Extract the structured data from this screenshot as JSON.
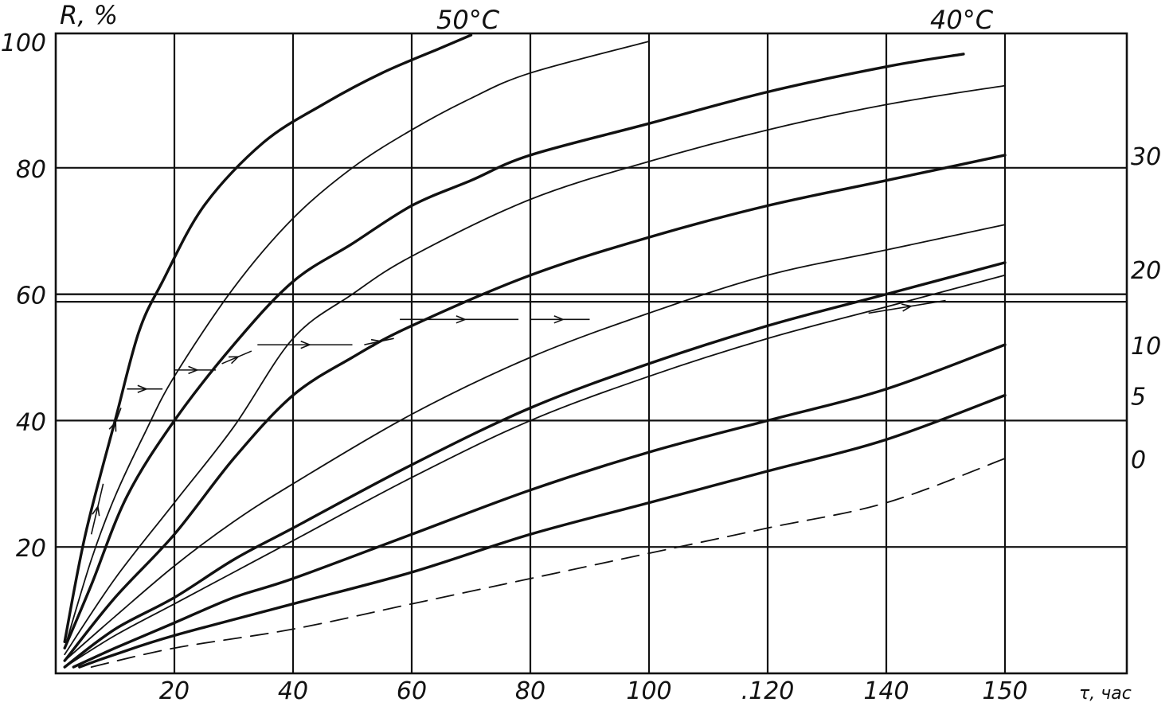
{
  "chart_data": {
    "type": "line",
    "title": "",
    "header_labels": {
      "left": "50°C",
      "right": "40°C"
    },
    "ylabel": "R, %",
    "xlabel": "τ, час",
    "xlim": [
      0,
      150
    ],
    "ylim": [
      0,
      100
    ],
    "grid": true,
    "x_tick_labels": [
      "20",
      "40",
      "60",
      "80",
      "100",
      ".120",
      "140",
      "150",
      "τ, час"
    ],
    "y_tick_labels": [
      "100",
      "80",
      "60",
      "40",
      "20"
    ],
    "right_labels": [
      "30",
      "20",
      "10",
      "5",
      "0"
    ],
    "series": [
      {
        "label": "",
        "heavy": true,
        "points": [
          [
            1.5,
            5
          ],
          [
            5,
            22
          ],
          [
            10,
            40
          ],
          [
            14,
            54
          ],
          [
            18,
            62
          ],
          [
            25,
            74
          ],
          [
            35,
            84
          ],
          [
            45,
            90
          ],
          [
            55,
            95
          ],
          [
            65,
            99
          ],
          [
            70,
            101
          ]
        ]
      },
      {
        "label": "",
        "heavy": false,
        "points": [
          [
            1.5,
            4
          ],
          [
            6,
            18
          ],
          [
            10,
            28
          ],
          [
            15,
            38
          ],
          [
            20,
            47
          ],
          [
            30,
            61
          ],
          [
            40,
            72
          ],
          [
            50,
            80
          ],
          [
            60,
            86
          ],
          [
            70,
            91
          ],
          [
            80,
            95
          ],
          [
            100,
            100
          ]
        ]
      },
      {
        "label": "",
        "heavy": true,
        "points": [
          [
            1.5,
            4
          ],
          [
            6,
            14
          ],
          [
            12,
            28
          ],
          [
            20,
            40
          ],
          [
            30,
            52
          ],
          [
            40,
            62
          ],
          [
            50,
            68
          ],
          [
            60,
            74
          ],
          [
            70,
            78
          ],
          [
            80,
            82
          ],
          [
            100,
            87
          ],
          [
            120,
            92
          ],
          [
            140,
            96
          ],
          [
            153,
            98
          ]
        ]
      },
      {
        "label": "",
        "heavy": false,
        "points": [
          [
            1.5,
            3
          ],
          [
            10,
            15
          ],
          [
            20,
            27
          ],
          [
            30,
            39
          ],
          [
            40,
            53
          ],
          [
            50,
            60
          ],
          [
            60,
            66
          ],
          [
            80,
            75
          ],
          [
            100,
            81
          ],
          [
            120,
            86
          ],
          [
            140,
            90
          ],
          [
            160,
            93
          ]
        ]
      },
      {
        "label": "30",
        "heavy": true,
        "points": [
          [
            1.5,
            2
          ],
          [
            10,
            12
          ],
          [
            20,
            22
          ],
          [
            30,
            34
          ],
          [
            40,
            44
          ],
          [
            50,
            50
          ],
          [
            60,
            55
          ],
          [
            80,
            63
          ],
          [
            100,
            69
          ],
          [
            120,
            74
          ],
          [
            140,
            78
          ],
          [
            160,
            82
          ]
        ]
      },
      {
        "label": "",
        "heavy": false,
        "points": [
          [
            1.5,
            2
          ],
          [
            10,
            9
          ],
          [
            20,
            17
          ],
          [
            30,
            24
          ],
          [
            40,
            30
          ],
          [
            60,
            41
          ],
          [
            80,
            50
          ],
          [
            100,
            57
          ],
          [
            120,
            63
          ],
          [
            140,
            67
          ],
          [
            160,
            71
          ]
        ]
      },
      {
        "label": "20",
        "heavy": true,
        "points": [
          [
            1.5,
            1
          ],
          [
            10,
            7
          ],
          [
            20,
            12
          ],
          [
            30,
            18
          ],
          [
            40,
            23
          ],
          [
            60,
            33
          ],
          [
            80,
            42
          ],
          [
            100,
            49
          ],
          [
            120,
            55
          ],
          [
            140,
            60
          ],
          [
            160,
            65
          ]
        ]
      },
      {
        "label": "",
        "heavy": false,
        "points": [
          [
            1.5,
            1
          ],
          [
            10,
            6
          ],
          [
            20,
            11
          ],
          [
            30,
            16
          ],
          [
            40,
            21
          ],
          [
            60,
            31
          ],
          [
            80,
            40
          ],
          [
            100,
            47
          ],
          [
            120,
            53
          ],
          [
            140,
            58
          ],
          [
            160,
            63
          ]
        ]
      },
      {
        "label": "10",
        "heavy": true,
        "points": [
          [
            3,
            1
          ],
          [
            10,
            4
          ],
          [
            20,
            8
          ],
          [
            30,
            12
          ],
          [
            40,
            15
          ],
          [
            60,
            22
          ],
          [
            80,
            29
          ],
          [
            100,
            35
          ],
          [
            120,
            40
          ],
          [
            140,
            45
          ],
          [
            160,
            52
          ]
        ]
      },
      {
        "label": "5",
        "heavy": true,
        "points": [
          [
            4,
            1
          ],
          [
            10,
            3
          ],
          [
            20,
            6
          ],
          [
            40,
            11
          ],
          [
            60,
            16
          ],
          [
            80,
            22
          ],
          [
            100,
            27
          ],
          [
            120,
            32
          ],
          [
            140,
            37
          ],
          [
            160,
            44
          ]
        ]
      },
      {
        "label": "0",
        "heavy": false,
        "dashed": true,
        "points": [
          [
            6,
            1
          ],
          [
            20,
            4
          ],
          [
            40,
            7
          ],
          [
            60,
            11
          ],
          [
            80,
            15
          ],
          [
            100,
            19
          ],
          [
            120,
            23
          ],
          [
            140,
            27
          ],
          [
            160,
            34
          ]
        ]
      }
    ],
    "path_segments": [
      {
        "points": [
          [
            6,
            22
          ],
          [
            8,
            30
          ]
        ]
      },
      {
        "points": [
          [
            9,
            37
          ],
          [
            11,
            42
          ]
        ]
      },
      {
        "points": [
          [
            12,
            45
          ],
          [
            18,
            45
          ]
        ]
      },
      {
        "points": [
          [
            20,
            48
          ],
          [
            27,
            48
          ]
        ]
      },
      {
        "points": [
          [
            28,
            49
          ],
          [
            33,
            51
          ]
        ]
      },
      {
        "points": [
          [
            34,
            52
          ],
          [
            50,
            52
          ]
        ]
      },
      {
        "points": [
          [
            52,
            52
          ],
          [
            57,
            53
          ]
        ]
      },
      {
        "points": [
          [
            58,
            56
          ],
          [
            78,
            56
          ]
        ]
      },
      {
        "points": [
          [
            80,
            56
          ],
          [
            90,
            56
          ]
        ]
      },
      {
        "points": [
          [
            137,
            57
          ],
          [
            150,
            59
          ]
        ]
      }
    ],
    "horizontal_lines": [
      60,
      58.8
    ]
  }
}
